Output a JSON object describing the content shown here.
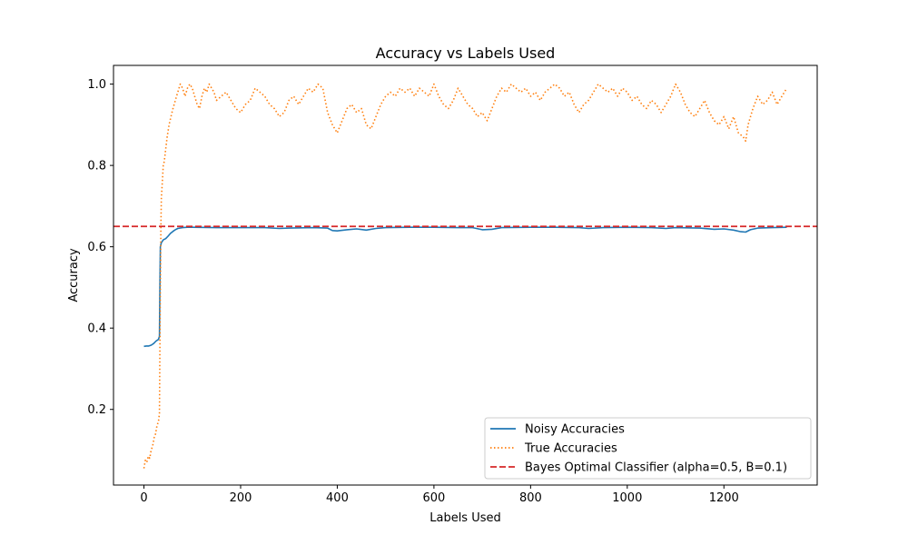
{
  "chart_data": {
    "type": "line",
    "title": "Accuracy vs Labels Used",
    "xlabel": "Labels Used",
    "ylabel": "Accuracy",
    "xlim": [
      -63,
      1393
    ],
    "ylim": [
      0.014,
      1.046
    ],
    "xticks": [
      "0",
      "200",
      "400",
      "600",
      "800",
      "1000",
      "1200"
    ],
    "yticks": [
      "0.2",
      "0.4",
      "0.6",
      "0.8",
      "1.0"
    ],
    "grid": false,
    "legend_position": "lower-right",
    "series": [
      {
        "name": "Noisy Accuracies",
        "color": "#1f77b4",
        "style": "solid",
        "points": [
          [
            0,
            0.355
          ],
          [
            5,
            0.356
          ],
          [
            10,
            0.356
          ],
          [
            15,
            0.358
          ],
          [
            20,
            0.362
          ],
          [
            25,
            0.368
          ],
          [
            30,
            0.372
          ],
          [
            32,
            0.38
          ],
          [
            33,
            0.5
          ],
          [
            34,
            0.6
          ],
          [
            36,
            0.61
          ],
          [
            40,
            0.617
          ],
          [
            45,
            0.62
          ],
          [
            50,
            0.626
          ],
          [
            55,
            0.633
          ],
          [
            60,
            0.638
          ],
          [
            65,
            0.642
          ],
          [
            70,
            0.645
          ],
          [
            80,
            0.647
          ],
          [
            90,
            0.648
          ],
          [
            100,
            0.648
          ],
          [
            150,
            0.647
          ],
          [
            200,
            0.647
          ],
          [
            250,
            0.647
          ],
          [
            280,
            0.645
          ],
          [
            300,
            0.646
          ],
          [
            350,
            0.647
          ],
          [
            380,
            0.646
          ],
          [
            390,
            0.64
          ],
          [
            400,
            0.639
          ],
          [
            420,
            0.642
          ],
          [
            440,
            0.644
          ],
          [
            460,
            0.641
          ],
          [
            480,
            0.645
          ],
          [
            500,
            0.647
          ],
          [
            550,
            0.648
          ],
          [
            600,
            0.648
          ],
          [
            650,
            0.647
          ],
          [
            680,
            0.647
          ],
          [
            700,
            0.642
          ],
          [
            720,
            0.643
          ],
          [
            740,
            0.647
          ],
          [
            800,
            0.648
          ],
          [
            850,
            0.648
          ],
          [
            900,
            0.647
          ],
          [
            920,
            0.645
          ],
          [
            950,
            0.647
          ],
          [
            1000,
            0.648
          ],
          [
            1050,
            0.647
          ],
          [
            1080,
            0.645
          ],
          [
            1100,
            0.647
          ],
          [
            1150,
            0.646
          ],
          [
            1180,
            0.643
          ],
          [
            1200,
            0.644
          ],
          [
            1220,
            0.641
          ],
          [
            1235,
            0.637
          ],
          [
            1245,
            0.636
          ],
          [
            1255,
            0.642
          ],
          [
            1270,
            0.646
          ],
          [
            1300,
            0.647
          ],
          [
            1330,
            0.648
          ]
        ]
      },
      {
        "name": "True Accuracies",
        "color": "#ff7f0e",
        "style": "dotted",
        "points": [
          [
            0,
            0.055
          ],
          [
            3,
            0.075
          ],
          [
            6,
            0.07
          ],
          [
            9,
            0.085
          ],
          [
            12,
            0.08
          ],
          [
            15,
            0.1
          ],
          [
            18,
            0.11
          ],
          [
            21,
            0.13
          ],
          [
            24,
            0.14
          ],
          [
            27,
            0.16
          ],
          [
            30,
            0.17
          ],
          [
            32,
            0.19
          ],
          [
            33,
            0.35
          ],
          [
            34,
            0.5
          ],
          [
            35,
            0.65
          ],
          [
            36,
            0.72
          ],
          [
            38,
            0.76
          ],
          [
            40,
            0.8
          ],
          [
            42,
            0.81
          ],
          [
            45,
            0.84
          ],
          [
            48,
            0.87
          ],
          [
            52,
            0.9
          ],
          [
            56,
            0.92
          ],
          [
            60,
            0.94
          ],
          [
            65,
            0.96
          ],
          [
            70,
            0.98
          ],
          [
            75,
            1.0
          ],
          [
            80,
            0.99
          ],
          [
            85,
            0.97
          ],
          [
            90,
            0.99
          ],
          [
            95,
            1.0
          ],
          [
            100,
            0.99
          ],
          [
            105,
            0.97
          ],
          [
            110,
            0.95
          ],
          [
            115,
            0.94
          ],
          [
            120,
            0.97
          ],
          [
            125,
            0.99
          ],
          [
            130,
            0.98
          ],
          [
            135,
            1.0
          ],
          [
            140,
            0.99
          ],
          [
            145,
            0.98
          ],
          [
            150,
            0.96
          ],
          [
            160,
            0.97
          ],
          [
            170,
            0.98
          ],
          [
            180,
            0.96
          ],
          [
            190,
            0.94
          ],
          [
            200,
            0.93
          ],
          [
            210,
            0.95
          ],
          [
            220,
            0.96
          ],
          [
            230,
            0.99
          ],
          [
            240,
            0.98
          ],
          [
            250,
            0.97
          ],
          [
            260,
            0.95
          ],
          [
            270,
            0.94
          ],
          [
            280,
            0.92
          ],
          [
            290,
            0.93
          ],
          [
            300,
            0.96
          ],
          [
            310,
            0.97
          ],
          [
            320,
            0.95
          ],
          [
            330,
            0.97
          ],
          [
            340,
            0.99
          ],
          [
            350,
            0.98
          ],
          [
            360,
            1.0
          ],
          [
            370,
            0.99
          ],
          [
            380,
            0.93
          ],
          [
            390,
            0.9
          ],
          [
            400,
            0.88
          ],
          [
            410,
            0.91
          ],
          [
            420,
            0.94
          ],
          [
            430,
            0.95
          ],
          [
            440,
            0.93
          ],
          [
            450,
            0.94
          ],
          [
            460,
            0.9
          ],
          [
            470,
            0.89
          ],
          [
            480,
            0.92
          ],
          [
            490,
            0.95
          ],
          [
            500,
            0.97
          ],
          [
            510,
            0.98
          ],
          [
            520,
            0.97
          ],
          [
            530,
            0.99
          ],
          [
            540,
            0.98
          ],
          [
            550,
            0.99
          ],
          [
            560,
            0.97
          ],
          [
            570,
            0.99
          ],
          [
            580,
            0.98
          ],
          [
            590,
            0.97
          ],
          [
            600,
            1.0
          ],
          [
            610,
            0.97
          ],
          [
            620,
            0.95
          ],
          [
            630,
            0.94
          ],
          [
            640,
            0.96
          ],
          [
            650,
            0.99
          ],
          [
            660,
            0.97
          ],
          [
            670,
            0.95
          ],
          [
            680,
            0.94
          ],
          [
            690,
            0.92
          ],
          [
            700,
            0.93
          ],
          [
            710,
            0.91
          ],
          [
            720,
            0.94
          ],
          [
            730,
            0.97
          ],
          [
            740,
            0.99
          ],
          [
            750,
            0.98
          ],
          [
            760,
            1.0
          ],
          [
            770,
            0.99
          ],
          [
            780,
            0.98
          ],
          [
            790,
            0.99
          ],
          [
            800,
            0.97
          ],
          [
            810,
            0.98
          ],
          [
            820,
            0.96
          ],
          [
            830,
            0.98
          ],
          [
            840,
            0.99
          ],
          [
            850,
            1.0
          ],
          [
            860,
            0.99
          ],
          [
            870,
            0.97
          ],
          [
            880,
            0.98
          ],
          [
            890,
            0.95
          ],
          [
            900,
            0.93
          ],
          [
            910,
            0.95
          ],
          [
            920,
            0.96
          ],
          [
            930,
            0.98
          ],
          [
            940,
            1.0
          ],
          [
            950,
            0.99
          ],
          [
            960,
            0.98
          ],
          [
            970,
            0.99
          ],
          [
            980,
            0.97
          ],
          [
            990,
            0.99
          ],
          [
            1000,
            0.98
          ],
          [
            1010,
            0.96
          ],
          [
            1020,
            0.97
          ],
          [
            1030,
            0.95
          ],
          [
            1040,
            0.94
          ],
          [
            1050,
            0.96
          ],
          [
            1060,
            0.95
          ],
          [
            1070,
            0.93
          ],
          [
            1080,
            0.95
          ],
          [
            1090,
            0.97
          ],
          [
            1100,
            1.0
          ],
          [
            1110,
            0.98
          ],
          [
            1120,
            0.95
          ],
          [
            1130,
            0.93
          ],
          [
            1140,
            0.92
          ],
          [
            1150,
            0.94
          ],
          [
            1160,
            0.96
          ],
          [
            1170,
            0.93
          ],
          [
            1180,
            0.91
          ],
          [
            1190,
            0.9
          ],
          [
            1200,
            0.92
          ],
          [
            1210,
            0.89
          ],
          [
            1220,
            0.92
          ],
          [
            1230,
            0.88
          ],
          [
            1240,
            0.87
          ],
          [
            1245,
            0.86
          ],
          [
            1250,
            0.9
          ],
          [
            1260,
            0.94
          ],
          [
            1270,
            0.97
          ],
          [
            1280,
            0.95
          ],
          [
            1290,
            0.96
          ],
          [
            1300,
            0.98
          ],
          [
            1310,
            0.95
          ],
          [
            1320,
            0.97
          ],
          [
            1330,
            0.99
          ]
        ]
      },
      {
        "name": "Bayes Optimal Classifier (alpha=0.5, B=0.1)",
        "color": "#d62728",
        "style": "dashed",
        "horizontal_line": 0.65
      }
    ]
  }
}
